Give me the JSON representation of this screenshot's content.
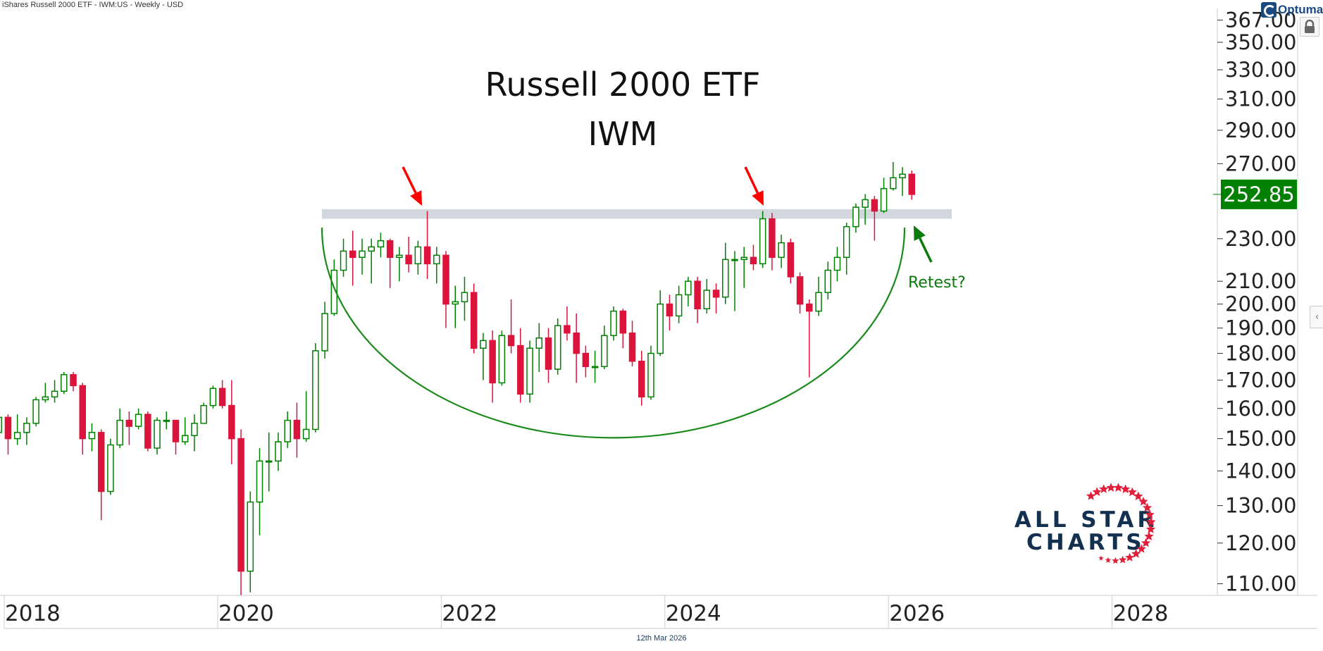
{
  "header": {
    "title": "iShares Russell 2000 ETF - IWM:US - Weekly - USD"
  },
  "footer": {
    "date": "12th Mar 2026"
  },
  "branding": {
    "optuma": "Optuma",
    "logo_line1": "ALL STAR",
    "logo_line2": "CHARTS"
  },
  "colors": {
    "up": "#008000",
    "down": "#dc143c",
    "price_tag": "#008000",
    "arc": "#1a8a1a",
    "zone": "#cdd3da",
    "arrow_red": "#ff0000",
    "arrow_green": "#0a7a0a",
    "logo_navy": "#14304f",
    "logo_red": "#e0203a"
  },
  "icons": {
    "lock": "lock-icon",
    "collapse": "chevron-left-icon"
  },
  "chart_data": {
    "type": "candlestick",
    "title": "Russell 2000 ETF",
    "subtitle": "IWM",
    "y_scale": "log",
    "ylim": [
      105,
      367
    ],
    "xlim": [
      2018,
      2029
    ],
    "grid": false,
    "last_price": "252.85",
    "y_ticks": [
      "367.00",
      "350.00",
      "330.00",
      "310.00",
      "290.00",
      "270.00",
      "230.00",
      "210.00",
      "200.00",
      "190.00",
      "180.00",
      "170.00",
      "160.00",
      "150.00",
      "140.00",
      "130.00",
      "120.00",
      "110.00"
    ],
    "x_ticks": [
      "2018",
      "2020",
      "2022",
      "2024",
      "2026",
      "2028"
    ],
    "annotations": {
      "resistance_zone": [
        240,
        245
      ],
      "retest_label": "Retest?",
      "red_arrows_at": [
        "2021-11",
        "2024-11"
      ],
      "green_arrow_at": "2026-03"
    },
    "ohlc": [
      [
        "2018-01",
        152,
        160,
        150,
        157
      ],
      [
        "2018-02",
        157,
        158,
        145,
        150
      ],
      [
        "2018-03",
        150,
        158,
        148,
        152
      ],
      [
        "2018-04",
        152,
        157,
        148,
        155
      ],
      [
        "2018-05",
        155,
        164,
        154,
        163
      ],
      [
        "2018-06",
        163,
        169,
        162,
        164
      ],
      [
        "2018-07",
        164,
        170,
        162,
        166
      ],
      [
        "2018-08",
        166,
        173,
        165,
        172
      ],
      [
        "2018-09",
        172,
        173,
        166,
        168
      ],
      [
        "2018-10",
        168,
        169,
        145,
        150
      ],
      [
        "2018-11",
        150,
        155,
        146,
        152
      ],
      [
        "2018-12",
        152,
        153,
        126,
        134
      ],
      [
        "2019-01",
        134,
        150,
        133,
        148
      ],
      [
        "2019-02",
        148,
        160,
        147,
        156
      ],
      [
        "2019-03",
        156,
        159,
        148,
        154
      ],
      [
        "2019-04",
        154,
        160,
        153,
        158
      ],
      [
        "2019-05",
        158,
        159,
        146,
        147
      ],
      [
        "2019-06",
        147,
        157,
        145,
        156
      ],
      [
        "2019-07",
        156,
        159,
        153,
        156
      ],
      [
        "2019-08",
        156,
        156,
        145,
        149
      ],
      [
        "2019-09",
        149,
        157,
        148,
        151
      ],
      [
        "2019-10",
        151,
        158,
        146,
        155
      ],
      [
        "2019-11",
        155,
        162,
        155,
        161
      ],
      [
        "2019-12",
        161,
        168,
        160,
        167
      ],
      [
        "2020-01",
        167,
        170,
        160,
        161
      ],
      [
        "2020-02",
        161,
        170,
        142,
        150
      ],
      [
        "2020-03",
        150,
        153,
        95,
        113
      ],
      [
        "2020-04",
        113,
        134,
        108,
        131
      ],
      [
        "2020-05",
        131,
        147,
        122,
        143
      ],
      [
        "2020-06",
        143,
        152,
        134,
        143
      ],
      [
        "2020-07",
        143,
        152,
        140,
        149
      ],
      [
        "2020-08",
        149,
        159,
        147,
        156
      ],
      [
        "2020-09",
        156,
        162,
        144,
        150
      ],
      [
        "2020-10",
        150,
        166,
        149,
        153
      ],
      [
        "2020-11",
        153,
        184,
        152,
        181
      ],
      [
        "2020-12",
        181,
        201,
        178,
        196
      ],
      [
        "2021-01",
        196,
        220,
        195,
        215
      ],
      [
        "2021-02",
        215,
        230,
        212,
        224
      ],
      [
        "2021-03",
        224,
        234,
        208,
        221
      ],
      [
        "2021-04",
        221,
        230,
        213,
        224
      ],
      [
        "2021-05",
        224,
        230,
        209,
        226
      ],
      [
        "2021-06",
        226,
        233,
        221,
        229
      ],
      [
        "2021-07",
        229,
        230,
        207,
        221
      ],
      [
        "2021-08",
        221,
        226,
        210,
        222
      ],
      [
        "2021-09",
        222,
        231,
        214,
        218
      ],
      [
        "2021-10",
        218,
        229,
        213,
        226
      ],
      [
        "2021-11",
        226,
        244,
        211,
        218
      ],
      [
        "2021-12",
        218,
        226,
        209,
        222
      ],
      [
        "2022-01",
        222,
        224,
        190,
        200
      ],
      [
        "2022-02",
        200,
        208,
        190,
        201
      ],
      [
        "2022-03",
        201,
        212,
        193,
        205
      ],
      [
        "2022-04",
        205,
        209,
        180,
        182
      ],
      [
        "2022-05",
        182,
        188,
        170,
        185
      ],
      [
        "2022-06",
        185,
        189,
        162,
        169
      ],
      [
        "2022-07",
        169,
        189,
        168,
        187
      ],
      [
        "2022-08",
        187,
        202,
        180,
        183
      ],
      [
        "2022-09",
        183,
        190,
        162,
        165
      ],
      [
        "2022-10",
        165,
        185,
        162,
        182
      ],
      [
        "2022-11",
        182,
        192,
        173,
        186
      ],
      [
        "2022-12",
        186,
        190,
        169,
        174
      ],
      [
        "2023-01",
        174,
        194,
        172,
        191
      ],
      [
        "2023-02",
        191,
        199,
        185,
        188
      ],
      [
        "2023-03",
        188,
        196,
        169,
        180
      ],
      [
        "2023-04",
        180,
        183,
        171,
        175
      ],
      [
        "2023-05",
        175,
        181,
        169,
        175
      ],
      [
        "2023-06",
        175,
        191,
        174,
        187
      ],
      [
        "2023-07",
        187,
        199,
        185,
        197
      ],
      [
        "2023-08",
        197,
        198,
        182,
        188
      ],
      [
        "2023-09",
        188,
        193,
        175,
        177
      ],
      [
        "2023-10",
        177,
        181,
        161,
        164
      ],
      [
        "2023-11",
        164,
        183,
        163,
        180
      ],
      [
        "2023-12",
        180,
        206,
        179,
        200
      ],
      [
        "2024-01",
        200,
        204,
        189,
        195
      ],
      [
        "2024-02",
        195,
        208,
        192,
        204
      ],
      [
        "2024-03",
        204,
        212,
        199,
        210
      ],
      [
        "2024-04",
        210,
        212,
        192,
        198
      ],
      [
        "2024-05",
        198,
        211,
        196,
        206
      ],
      [
        "2024-06",
        206,
        209,
        196,
        203
      ],
      [
        "2024-07",
        203,
        228,
        200,
        220
      ],
      [
        "2024-08",
        220,
        224,
        197,
        220
      ],
      [
        "2024-09",
        220,
        226,
        207,
        221
      ],
      [
        "2024-10",
        221,
        227,
        215,
        218
      ],
      [
        "2024-11",
        218,
        244,
        216,
        240
      ],
      [
        "2024-12",
        240,
        243,
        215,
        221
      ],
      [
        "2025-01",
        221,
        232,
        216,
        228
      ],
      [
        "2025-02",
        228,
        230,
        209,
        212
      ],
      [
        "2025-03",
        212,
        214,
        196,
        200
      ],
      [
        "2025-04",
        200,
        202,
        171,
        197
      ],
      [
        "2025-05",
        197,
        212,
        195,
        205
      ],
      [
        "2025-06",
        205,
        219,
        202,
        215
      ],
      [
        "2025-07",
        215,
        226,
        210,
        221
      ],
      [
        "2025-08",
        221,
        238,
        213,
        236
      ],
      [
        "2025-09",
        236,
        248,
        233,
        246
      ],
      [
        "2025-10",
        246,
        253,
        237,
        250
      ],
      [
        "2025-11",
        250,
        252,
        229,
        244
      ],
      [
        "2025-12",
        244,
        262,
        243,
        256
      ],
      [
        "2026-01",
        256,
        271,
        255,
        262
      ],
      [
        "2026-02",
        262,
        268,
        252,
        264
      ],
      [
        "2026-03",
        264,
        266,
        250,
        252.85
      ]
    ]
  }
}
